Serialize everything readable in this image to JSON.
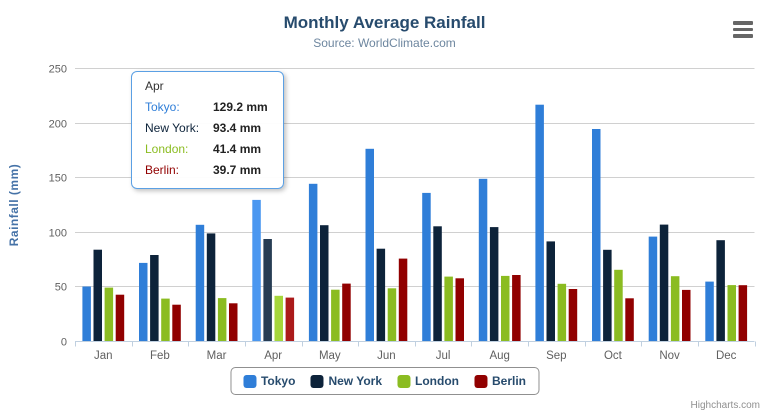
{
  "header": {
    "title": "Monthly Average Rainfall",
    "subtitle": "Source: WorldClimate.com"
  },
  "chart_data": {
    "type": "bar",
    "title": "Monthly Average Rainfall",
    "subtitle": "Source: WorldClimate.com",
    "xlabel": "",
    "ylabel": "Rainfall (mm)",
    "ylim": [
      0,
      250
    ],
    "yticks": [
      0,
      50,
      100,
      150,
      200,
      250
    ],
    "grid": true,
    "legend_position": "bottom-center",
    "categories": [
      "Jan",
      "Feb",
      "Mar",
      "Apr",
      "May",
      "Jun",
      "Jul",
      "Aug",
      "Sep",
      "Oct",
      "Nov",
      "Dec"
    ],
    "series": [
      {
        "name": "Tokyo",
        "color": "#2f7ed8",
        "hover_color": "#4a97f0",
        "values": [
          49.9,
          71.5,
          106.4,
          129.2,
          144.0,
          176.0,
          135.6,
          148.5,
          216.4,
          194.1,
          95.6,
          54.4
        ]
      },
      {
        "name": "New York",
        "color": "#0d233a",
        "hover_color": "#273d54",
        "values": [
          83.6,
          78.8,
          98.5,
          93.4,
          106.0,
          84.5,
          105.0,
          104.3,
          91.2,
          83.5,
          106.6,
          92.3
        ]
      },
      {
        "name": "London",
        "color": "#8bbc21",
        "hover_color": "#a5d63b",
        "values": [
          48.9,
          38.8,
          39.3,
          41.4,
          47.0,
          48.3,
          59.0,
          59.6,
          52.4,
          65.2,
          59.3,
          51.2
        ]
      },
      {
        "name": "Berlin",
        "color": "#910000",
        "hover_color": "#ab1a1a",
        "values": [
          42.4,
          33.2,
          34.5,
          39.7,
          52.6,
          75.5,
          57.4,
          60.4,
          47.6,
          39.1,
          46.8,
          51.1
        ]
      }
    ],
    "hovered_category_index": 3
  },
  "tooltip": {
    "header": "Apr",
    "border_color": "#5ba0e4",
    "rows": [
      {
        "name": "Tokyo",
        "color": "#2f7ed8",
        "value": "129.2",
        "suffix": "mm"
      },
      {
        "name": "New York",
        "color": "#0d233a",
        "value": "93.4",
        "suffix": "mm"
      },
      {
        "name": "London",
        "color": "#8bbc21",
        "value": "41.4",
        "suffix": "mm"
      },
      {
        "name": "Berlin",
        "color": "#910000",
        "value": "39.7",
        "suffix": "mm"
      }
    ]
  },
  "theme": {
    "title_color": "#274b6d",
    "subtitle_color": "#6d869f",
    "axis_label_color": "#606060",
    "y_axis_title_color": "#4572a7",
    "gridline_color": "#d0d0d0",
    "axis_line_color": "#c0d0e0",
    "legend_text_color": "#274b6d",
    "legend_border_color": "#909090",
    "credits_color": "#909090"
  },
  "credits": {
    "label": "Highcharts.com"
  }
}
